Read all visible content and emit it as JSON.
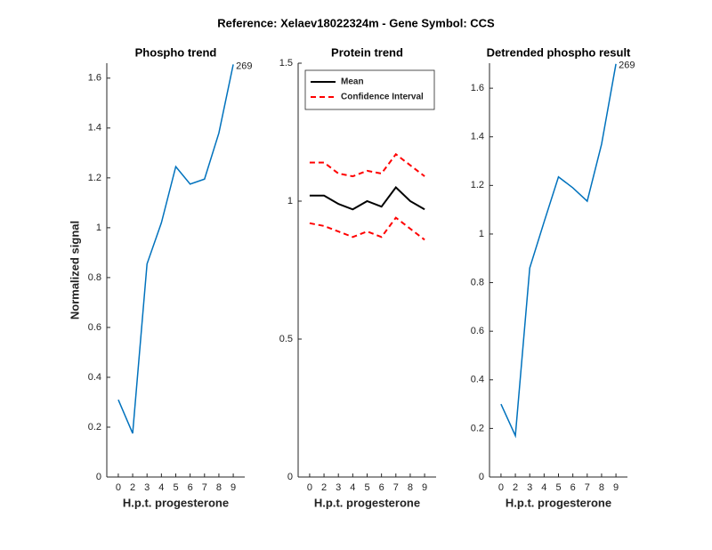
{
  "title": "Reference:  Xelaev18022324m - Gene Symbol:  CCS",
  "chart_data": [
    {
      "type": "line",
      "title": "Phospho trend",
      "x_label": "H.p.t. progesterone",
      "y_label": "Normalized signal",
      "categories": [
        "0",
        "2",
        "3",
        "4",
        "5",
        "6",
        "7",
        "8",
        "9"
      ],
      "series": [
        {
          "color": "#0072bd",
          "values": [
            0.31,
            0.175,
            0.855,
            1.02,
            1.245,
            1.175,
            1.195,
            1.38,
            1.655
          ]
        }
      ],
      "annotation": "269",
      "ylim": [
        0,
        1.66
      ],
      "yticks": [
        0,
        0.2,
        0.4,
        0.6,
        0.8,
        1,
        1.2,
        1.4,
        1.6
      ]
    },
    {
      "type": "line",
      "title": "Protein trend",
      "x_label": "H.p.t. progesterone",
      "categories": [
        "0",
        "2",
        "3",
        "4",
        "5",
        "6",
        "7",
        "8",
        "9"
      ],
      "series": [
        {
          "name": "Mean",
          "color": "#000000",
          "values": [
            1.02,
            1.02,
            0.99,
            0.97,
            1.0,
            0.98,
            1.05,
            1.0,
            0.97
          ]
        },
        {
          "name": "Confidence Interval",
          "color": "#ff0000",
          "dashed": true,
          "upper": [
            1.14,
            1.14,
            1.1,
            1.09,
            1.11,
            1.1,
            1.17,
            1.13,
            1.09
          ],
          "lower": [
            0.92,
            0.91,
            0.89,
            0.87,
            0.89,
            0.87,
            0.94,
            0.9,
            0.86
          ]
        }
      ],
      "legend": "northeast",
      "ylim": [
        0,
        1.5
      ],
      "yticks": [
        0,
        0.5,
        1,
        1.5
      ]
    },
    {
      "type": "line",
      "title": "Detrended phospho result",
      "x_label": "H.p.t. progesterone",
      "categories": [
        "0",
        "2",
        "3",
        "4",
        "5",
        "6",
        "7",
        "8",
        "9"
      ],
      "series": [
        {
          "color": "#0072bd",
          "values": [
            0.3,
            0.17,
            0.86,
            1.05,
            1.235,
            1.19,
            1.135,
            1.37,
            1.7
          ]
        }
      ],
      "annotation": "269",
      "ylim": [
        0,
        1.703
      ],
      "yticks": [
        0,
        0.2,
        0.4,
        0.6,
        0.8,
        1,
        1.2,
        1.4,
        1.6
      ]
    }
  ]
}
